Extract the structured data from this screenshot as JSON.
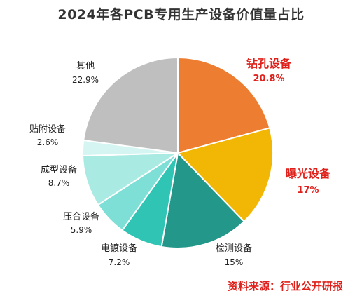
{
  "chart_data": {
    "type": "pie",
    "title": "2024年各PCB专用生产设备价值量占比",
    "slices": [
      {
        "name": "钻孔设备",
        "label": "20.8%",
        "value": 20.8,
        "color": "#ED7D31",
        "highlight": true
      },
      {
        "name": "曝光设备",
        "label": "17%",
        "value": 17.0,
        "color": "#F2B705",
        "highlight": true
      },
      {
        "name": "检测设备",
        "label": "15%",
        "value": 15.0,
        "color": "#23978A",
        "highlight": false
      },
      {
        "name": "电镀设备",
        "label": "7.2%",
        "value": 7.2,
        "color": "#30C4B5",
        "highlight": false
      },
      {
        "name": "压合设备",
        "label": "5.9%",
        "value": 5.9,
        "color": "#7DDFD5",
        "highlight": false
      },
      {
        "name": "成型设备",
        "label": "8.7%",
        "value": 8.7,
        "color": "#A9EBE3",
        "highlight": false
      },
      {
        "name": "贴附设备",
        "label": "2.6%",
        "value": 2.6,
        "color": "#D4F5F1",
        "highlight": false
      },
      {
        "name": "其他",
        "label": "22.9%",
        "value": 22.9,
        "color": "#BFBFBF",
        "highlight": false
      }
    ],
    "source": "资料来源：行业公开研报"
  }
}
